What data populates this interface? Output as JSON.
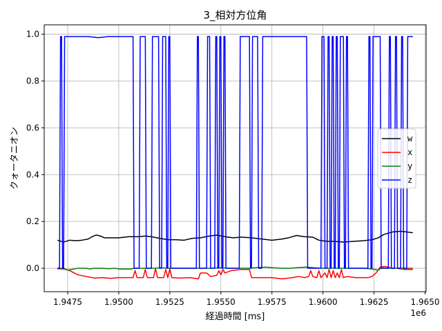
{
  "chart_data": {
    "type": "line",
    "title": "3_相対方位角",
    "xlabel": "経過時間 [ms]",
    "ylabel": "クォータニオン",
    "x_offset_label": "1e6",
    "xlim": [
      1.94635,
      1.96505
    ],
    "ylim": [
      -0.1,
      1.04
    ],
    "x_ticks": [
      1.9475,
      1.95,
      1.9525,
      1.955,
      1.9575,
      1.96,
      1.9625,
      1.965
    ],
    "x_tick_labels": [
      "1.9475",
      "1.9500",
      "1.9525",
      "1.9550",
      "1.9575",
      "1.9600",
      "1.9625",
      "1.9650"
    ],
    "y_ticks": [
      0.0,
      0.2,
      0.4,
      0.6,
      0.8,
      1.0
    ],
    "y_tick_labels": [
      "0.0",
      "0.2",
      "0.4",
      "0.6",
      "0.8",
      "1.0"
    ],
    "grid": true,
    "legend_position": "center-right",
    "series": [
      {
        "name": "w",
        "color": "#000000",
        "points": [
          [
            1.947,
            0.12
          ],
          [
            1.9473,
            0.112
          ],
          [
            1.9476,
            0.12
          ],
          [
            1.9479,
            0.118
          ],
          [
            1.9482,
            0.12
          ],
          [
            1.9485,
            0.125
          ],
          [
            1.9487,
            0.135
          ],
          [
            1.9489,
            0.142
          ],
          [
            1.9491,
            0.138
          ],
          [
            1.9493,
            0.13
          ],
          [
            1.9497,
            0.13
          ],
          [
            1.95,
            0.13
          ],
          [
            1.9505,
            0.135
          ],
          [
            1.951,
            0.135
          ],
          [
            1.9513,
            0.138
          ],
          [
            1.9516,
            0.135
          ],
          [
            1.952,
            0.128
          ],
          [
            1.9524,
            0.122
          ],
          [
            1.9528,
            0.122
          ],
          [
            1.9532,
            0.12
          ],
          [
            1.9536,
            0.128
          ],
          [
            1.954,
            0.13
          ],
          [
            1.9544,
            0.137
          ],
          [
            1.9548,
            0.142
          ],
          [
            1.9552,
            0.135
          ],
          [
            1.9556,
            0.13
          ],
          [
            1.956,
            0.133
          ],
          [
            1.9565,
            0.13
          ],
          [
            1.957,
            0.125
          ],
          [
            1.9575,
            0.12
          ],
          [
            1.958,
            0.125
          ],
          [
            1.9583,
            0.13
          ],
          [
            1.9587,
            0.14
          ],
          [
            1.9591,
            0.135
          ],
          [
            1.9595,
            0.133
          ],
          [
            1.9598,
            0.12
          ],
          [
            1.9602,
            0.115
          ],
          [
            1.9605,
            0.115
          ],
          [
            1.961,
            0.112
          ],
          [
            1.9615,
            0.115
          ],
          [
            1.962,
            0.118
          ],
          [
            1.9624,
            0.122
          ],
          [
            1.9627,
            0.13
          ],
          [
            1.963,
            0.145
          ],
          [
            1.9634,
            0.155
          ],
          [
            1.9638,
            0.158
          ],
          [
            1.9641,
            0.155
          ],
          [
            1.9644,
            0.152
          ]
        ]
      },
      {
        "name": "x",
        "color": "#ff0000",
        "points": [
          [
            1.947,
            -0.002
          ],
          [
            1.9473,
            -0.003
          ],
          [
            1.9476,
            -0.01
          ],
          [
            1.948,
            -0.028
          ],
          [
            1.9484,
            -0.035
          ],
          [
            1.9488,
            -0.042
          ],
          [
            1.9492,
            -0.04
          ],
          [
            1.9496,
            -0.043
          ],
          [
            1.95,
            -0.04
          ],
          [
            1.9504,
            -0.04
          ],
          [
            1.9507,
            -0.04
          ],
          [
            1.9508,
            -0.01
          ],
          [
            1.9509,
            -0.04
          ],
          [
            1.9512,
            -0.04
          ],
          [
            1.9513,
            -0.005
          ],
          [
            1.9514,
            -0.04
          ],
          [
            1.9517,
            -0.04
          ],
          [
            1.9518,
            -0.002
          ],
          [
            1.9519,
            -0.04
          ],
          [
            1.9522,
            -0.04
          ],
          [
            1.9523,
            -0.005
          ],
          [
            1.9524,
            -0.04
          ],
          [
            1.9525,
            -0.002
          ],
          [
            1.9526,
            -0.04
          ],
          [
            1.953,
            -0.042
          ],
          [
            1.9535,
            -0.04
          ],
          [
            1.9539,
            -0.045
          ],
          [
            1.954,
            -0.02
          ],
          [
            1.9543,
            -0.02
          ],
          [
            1.9545,
            -0.035
          ],
          [
            1.9548,
            -0.03
          ],
          [
            1.9549,
            -0.01
          ],
          [
            1.955,
            -0.028
          ],
          [
            1.9551,
            -0.005
          ],
          [
            1.9552,
            -0.02
          ],
          [
            1.9555,
            -0.01
          ],
          [
            1.956,
            -0.005
          ],
          [
            1.9564,
            -0.005
          ],
          [
            1.9565,
            -0.04
          ],
          [
            1.957,
            -0.04
          ],
          [
            1.9575,
            -0.04
          ],
          [
            1.958,
            -0.045
          ],
          [
            1.9585,
            -0.04
          ],
          [
            1.9588,
            -0.035
          ],
          [
            1.9591,
            -0.04
          ],
          [
            1.9593,
            -0.035
          ],
          [
            1.9594,
            -0.01
          ],
          [
            1.9595,
            -0.035
          ],
          [
            1.9597,
            -0.04
          ],
          [
            1.9598,
            -0.01
          ],
          [
            1.9599,
            -0.04
          ],
          [
            1.9601,
            -0.02
          ],
          [
            1.9602,
            -0.04
          ],
          [
            1.9603,
            -0.005
          ],
          [
            1.9604,
            -0.04
          ],
          [
            1.9605,
            -0.01
          ],
          [
            1.9606,
            -0.04
          ],
          [
            1.9607,
            -0.02
          ],
          [
            1.9608,
            -0.04
          ],
          [
            1.9609,
            -0.005
          ],
          [
            1.961,
            -0.04
          ],
          [
            1.9612,
            -0.035
          ],
          [
            1.9616,
            -0.04
          ],
          [
            1.962,
            -0.04
          ],
          [
            1.9622,
            -0.04
          ],
          [
            1.9624,
            -0.035
          ],
          [
            1.9626,
            -0.02
          ],
          [
            1.9628,
            0.005
          ],
          [
            1.963,
            0.008
          ],
          [
            1.9632,
            0.005
          ],
          [
            1.9634,
            0.0
          ],
          [
            1.9637,
            0.0
          ],
          [
            1.964,
            0.0
          ],
          [
            1.9644,
            0.0
          ]
        ]
      },
      {
        "name": "y",
        "color": "#008000",
        "points": [
          [
            1.947,
            0.0
          ],
          [
            1.9473,
            0.0
          ],
          [
            1.9475,
            -0.008
          ],
          [
            1.9478,
            -0.003
          ],
          [
            1.948,
            0.0
          ],
          [
            1.9484,
            0.0
          ],
          [
            1.9486,
            -0.003
          ],
          [
            1.9488,
            0.0
          ],
          [
            1.9492,
            0.0
          ],
          [
            1.9495,
            -0.002
          ],
          [
            1.9498,
            0.0
          ],
          [
            1.95,
            -0.003
          ],
          [
            1.9503,
            -0.003
          ],
          [
            1.9506,
            -0.003
          ],
          [
            1.9508,
            0.0
          ],
          [
            1.9512,
            0.0
          ],
          [
            1.9515,
            0.0
          ],
          [
            1.9518,
            0.0
          ],
          [
            1.952,
            0.002
          ],
          [
            1.9525,
            0.0
          ],
          [
            1.953,
            0.0
          ],
          [
            1.9535,
            0.0
          ],
          [
            1.954,
            0.0
          ],
          [
            1.9545,
            0.0
          ],
          [
            1.955,
            0.002
          ],
          [
            1.9555,
            0.0
          ],
          [
            1.956,
            0.0
          ],
          [
            1.9564,
            0.0
          ],
          [
            1.9568,
            0.003
          ],
          [
            1.9572,
            0.005
          ],
          [
            1.9576,
            0.002
          ],
          [
            1.958,
            0.0
          ],
          [
            1.9584,
            0.0
          ],
          [
            1.9588,
            0.003
          ],
          [
            1.9592,
            0.005
          ],
          [
            1.9596,
            0.002
          ],
          [
            1.96,
            0.0
          ],
          [
            1.9605,
            0.0
          ],
          [
            1.961,
            0.0
          ],
          [
            1.9615,
            0.0
          ],
          [
            1.962,
            0.0
          ],
          [
            1.9624,
            -0.003
          ],
          [
            1.9627,
            -0.008
          ],
          [
            1.9629,
            0.002
          ],
          [
            1.9632,
            0.0
          ],
          [
            1.9636,
            0.0
          ],
          [
            1.964,
            -0.005
          ],
          [
            1.9644,
            -0.005
          ]
        ]
      },
      {
        "name": "z",
        "color": "#0000ff",
        "points": [
          [
            1.947,
            0.0
          ],
          [
            1.9471,
            0.0
          ],
          [
            1.94715,
            0.99
          ],
          [
            1.9472,
            0.99
          ],
          [
            1.94725,
            0.0
          ],
          [
            1.9473,
            0.0
          ],
          [
            1.94735,
            0.99
          ],
          [
            1.9474,
            0.99
          ],
          [
            1.9475,
            0.99
          ],
          [
            1.948,
            0.99
          ],
          [
            1.9485,
            0.99
          ],
          [
            1.949,
            0.985
          ],
          [
            1.9495,
            0.99
          ],
          [
            1.95,
            0.99
          ],
          [
            1.9507,
            0.99
          ],
          [
            1.95075,
            0.0
          ],
          [
            1.951,
            0.0
          ],
          [
            1.95105,
            0.99
          ],
          [
            1.9513,
            0.99
          ],
          [
            1.95135,
            0.0
          ],
          [
            1.9516,
            0.0
          ],
          [
            1.95165,
            0.99
          ],
          [
            1.95195,
            0.99
          ],
          [
            1.952,
            0.0
          ],
          [
            1.9521,
            0.0
          ],
          [
            1.95215,
            0.99
          ],
          [
            1.9523,
            0.99
          ],
          [
            1.95235,
            0.0
          ],
          [
            1.9524,
            0.0
          ],
          [
            1.95245,
            0.99
          ],
          [
            1.9525,
            0.99
          ],
          [
            1.95255,
            0.0
          ],
          [
            1.9538,
            0.0
          ],
          [
            1.95385,
            0.99
          ],
          [
            1.9539,
            0.99
          ],
          [
            1.95395,
            0.0
          ],
          [
            1.9543,
            0.0
          ],
          [
            1.95435,
            0.99
          ],
          [
            1.95445,
            0.99
          ],
          [
            1.9545,
            0.0
          ],
          [
            1.9547,
            0.0
          ],
          [
            1.95475,
            0.99
          ],
          [
            1.9548,
            0.99
          ],
          [
            1.95485,
            0.0
          ],
          [
            1.9549,
            0.0
          ],
          [
            1.95495,
            0.99
          ],
          [
            1.955,
            0.99
          ],
          [
            1.95505,
            0.0
          ],
          [
            1.9551,
            0.0
          ],
          [
            1.95515,
            0.99
          ],
          [
            1.9552,
            0.99
          ],
          [
            1.95525,
            0.0
          ],
          [
            1.9559,
            0.0
          ],
          [
            1.95595,
            0.99
          ],
          [
            1.9564,
            0.99
          ],
          [
            1.95645,
            0.0
          ],
          [
            1.9565,
            0.0
          ],
          [
            1.95655,
            0.99
          ],
          [
            1.9568,
            0.99
          ],
          [
            1.95685,
            0.0
          ],
          [
            1.957,
            0.0
          ],
          [
            1.95705,
            0.99
          ],
          [
            1.9592,
            0.99
          ],
          [
            1.95925,
            0.0
          ],
          [
            1.9599,
            0.0
          ],
          [
            1.95995,
            0.99
          ],
          [
            1.96005,
            0.99
          ],
          [
            1.9601,
            0.0
          ],
          [
            1.9602,
            0.0
          ],
          [
            1.96025,
            0.99
          ],
          [
            1.9603,
            0.99
          ],
          [
            1.96035,
            0.0
          ],
          [
            1.9604,
            0.0
          ],
          [
            1.96045,
            0.99
          ],
          [
            1.9605,
            0.99
          ],
          [
            1.96055,
            0.0
          ],
          [
            1.9606,
            0.0
          ],
          [
            1.96065,
            0.99
          ],
          [
            1.9607,
            0.99
          ],
          [
            1.96075,
            0.0
          ],
          [
            1.9608,
            0.0
          ],
          [
            1.96085,
            0.99
          ],
          [
            1.961,
            0.99
          ],
          [
            1.96105,
            0.0
          ],
          [
            1.9611,
            0.0
          ],
          [
            1.96115,
            0.99
          ],
          [
            1.9612,
            0.99
          ],
          [
            1.96125,
            0.0
          ],
          [
            1.9622,
            0.0
          ],
          [
            1.96225,
            0.99
          ],
          [
            1.9623,
            0.99
          ],
          [
            1.96235,
            0.0
          ],
          [
            1.9624,
            0.0
          ],
          [
            1.96245,
            0.99
          ],
          [
            1.9628,
            0.99
          ],
          [
            1.96285,
            0.0
          ],
          [
            1.9632,
            0.0
          ],
          [
            1.96325,
            0.99
          ],
          [
            1.9633,
            0.99
          ],
          [
            1.96335,
            0.0
          ],
          [
            1.9635,
            0.0
          ],
          [
            1.96355,
            0.99
          ],
          [
            1.9636,
            0.99
          ],
          [
            1.96365,
            0.0
          ],
          [
            1.9638,
            0.0
          ],
          [
            1.96385,
            0.99
          ],
          [
            1.9639,
            0.99
          ],
          [
            1.96395,
            0.0
          ],
          [
            1.9641,
            0.0
          ],
          [
            1.96415,
            0.99
          ],
          [
            1.9644,
            0.99
          ]
        ]
      }
    ]
  }
}
